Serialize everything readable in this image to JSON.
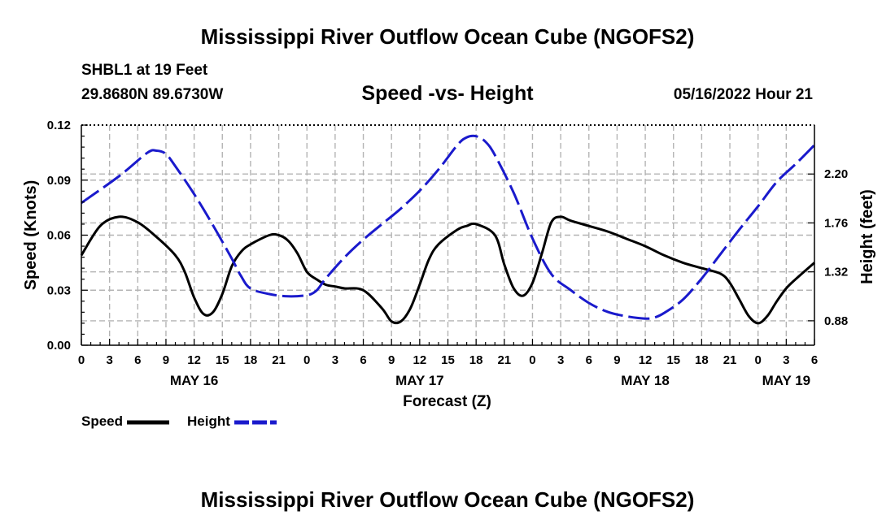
{
  "header": {
    "title": "Mississippi River Outflow Ocean Cube (NGOFS2)",
    "station": "SHBL1 at 19 Feet",
    "coords": "29.8680N  89.6730W",
    "subtitle": "Speed -vs- Height",
    "datetime": "05/16/2022 Hour 21"
  },
  "footer": {
    "title": "Mississippi River Outflow Ocean Cube (NGOFS2)"
  },
  "legend": {
    "speed": "Speed",
    "height": "Height"
  },
  "colors": {
    "speed": "#000000",
    "height": "#1a1acc",
    "grid": "#b4b4b4"
  },
  "chart_data": {
    "type": "line",
    "xlabel": "Forecast (Z)",
    "ylabel_left": "Speed (Knots)",
    "ylabel_right": "Height (feet)",
    "x_range_hours": [
      0,
      78
    ],
    "x_tick_labels": [
      "0",
      "3",
      "6",
      "9",
      "12",
      "15",
      "18",
      "21",
      "0",
      "3",
      "6",
      "9",
      "12",
      "15",
      "18",
      "21",
      "0",
      "3",
      "6",
      "9",
      "12",
      "15",
      "18",
      "21",
      "0",
      "3",
      "6"
    ],
    "date_labels": [
      {
        "hour": 12,
        "label": "MAY 16"
      },
      {
        "hour": 36,
        "label": "MAY 17"
      },
      {
        "hour": 60,
        "label": "MAY 18"
      },
      {
        "hour": 75,
        "label": "MAY 19"
      }
    ],
    "y_left": {
      "min": 0,
      "max": 0.12,
      "ticks": [
        "0.00",
        "0.03",
        "0.06",
        "0.09",
        "0.12"
      ]
    },
    "y_right": {
      "min": 0.66,
      "max": 2.64,
      "ticks": [
        0.88,
        1.32,
        1.76,
        2.2
      ],
      "tick_labels": [
        "0.88",
        "1.32",
        "1.76",
        "2.20"
      ]
    },
    "grid": true,
    "legend_position": "bottom-left",
    "series": [
      {
        "name": "Speed",
        "axis": "left",
        "style": "solid",
        "x": [
          0,
          2,
          4,
          6,
          8,
          10,
          11,
          12,
          13,
          14,
          15,
          16,
          17,
          18,
          20,
          21,
          22,
          23,
          24,
          25,
          26,
          27,
          28,
          30,
          32,
          33,
          34,
          35,
          36,
          37,
          38,
          40,
          41,
          42,
          44,
          45,
          46,
          47,
          48,
          49,
          50,
          51,
          52,
          54,
          56,
          58,
          60,
          62,
          64,
          66,
          68,
          69,
          70,
          71,
          72,
          73,
          74,
          75,
          76,
          78
        ],
        "values": [
          0.049,
          0.065,
          0.07,
          0.067,
          0.059,
          0.049,
          0.04,
          0.026,
          0.017,
          0.018,
          0.028,
          0.043,
          0.051,
          0.055,
          0.06,
          0.06,
          0.057,
          0.05,
          0.04,
          0.036,
          0.033,
          0.032,
          0.031,
          0.03,
          0.02,
          0.013,
          0.013,
          0.02,
          0.033,
          0.047,
          0.055,
          0.063,
          0.065,
          0.066,
          0.06,
          0.044,
          0.031,
          0.027,
          0.034,
          0.05,
          0.067,
          0.07,
          0.068,
          0.065,
          0.062,
          0.058,
          0.054,
          0.049,
          0.045,
          0.042,
          0.039,
          0.034,
          0.025,
          0.016,
          0.012,
          0.016,
          0.024,
          0.031,
          0.036,
          0.045
        ]
      },
      {
        "name": "Height",
        "axis": "right",
        "style": "dashed",
        "x": [
          0,
          4,
          7,
          8,
          9,
          10,
          12,
          14,
          16,
          17,
          18,
          20,
          22,
          24,
          25,
          26,
          28,
          30,
          32,
          34,
          36,
          38,
          40,
          41,
          42,
          43,
          44,
          46,
          48,
          50,
          52,
          54,
          56,
          58,
          60,
          61,
          62,
          64,
          66,
          68,
          70,
          72,
          74,
          76,
          78
        ],
        "values": [
          1.94,
          2.18,
          2.39,
          2.41,
          2.38,
          2.27,
          2.02,
          1.74,
          1.44,
          1.28,
          1.17,
          1.12,
          1.1,
          1.11,
          1.15,
          1.26,
          1.45,
          1.61,
          1.75,
          1.89,
          2.05,
          2.24,
          2.46,
          2.53,
          2.54,
          2.49,
          2.37,
          2.03,
          1.62,
          1.3,
          1.16,
          1.04,
          0.96,
          0.92,
          0.9,
          0.91,
          0.95,
          1.07,
          1.26,
          1.48,
          1.7,
          1.91,
          2.13,
          2.29,
          2.46
        ]
      }
    ]
  }
}
